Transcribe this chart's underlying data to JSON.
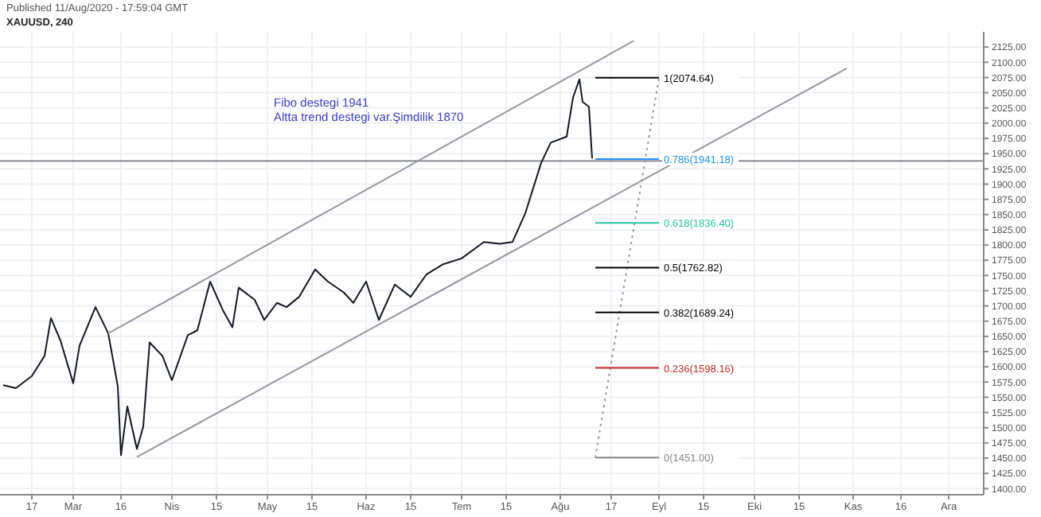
{
  "chart_data": {
    "type": "line",
    "title": "XAUUSD, 240",
    "subtitle": "Published 11/Aug/2020 - 17:59:04 GMT",
    "annotations": [
      "Fibo destegi  1941",
      "Altta trend destegi var.Şimdilik 1870"
    ],
    "series": [
      {
        "color": "#131722",
        "x": [
          "2020-02-08",
          "2020-02-12",
          "2020-02-17",
          "2020-02-21",
          "2020-02-23",
          "2020-02-26",
          "2020-03-01",
          "2020-03-03",
          "2020-03-08",
          "2020-03-12",
          "2020-03-15",
          "2020-03-16",
          "2020-03-18",
          "2020-03-21",
          "2020-03-23",
          "2020-03-25",
          "2020-03-29",
          "2020-04-01",
          "2020-04-06",
          "2020-04-09",
          "2020-04-13",
          "2020-04-17",
          "2020-04-20",
          "2020-04-22",
          "2020-04-27",
          "2020-04-30",
          "2020-05-04",
          "2020-05-07",
          "2020-05-11",
          "2020-05-16",
          "2020-05-20",
          "2020-05-25",
          "2020-05-28",
          "2020-06-01",
          "2020-06-05",
          "2020-06-10",
          "2020-06-15",
          "2020-06-20",
          "2020-06-25",
          "2020-07-01",
          "2020-07-08",
          "2020-07-13",
          "2020-07-17",
          "2020-07-21",
          "2020-07-26",
          "2020-07-29",
          "2020-08-03",
          "2020-08-05",
          "2020-08-07",
          "2020-08-08",
          "2020-08-10",
          "2020-08-11"
        ],
        "values": [
          1570,
          1565,
          1585,
          1618,
          1680,
          1643,
          1573,
          1635,
          1698,
          1655,
          1568,
          1455,
          1535,
          1465,
          1502,
          1640,
          1618,
          1578,
          1652,
          1660,
          1740,
          1693,
          1665,
          1730,
          1710,
          1677,
          1705,
          1698,
          1715,
          1760,
          1740,
          1722,
          1705,
          1740,
          1677,
          1735,
          1715,
          1752,
          1768,
          1778,
          1805,
          1802,
          1805,
          1852,
          1935,
          1968,
          1978,
          2042,
          2072,
          2035,
          2027,
          1942
        ]
      },
      {
        "color": "#9598a1",
        "x": [
          "2020-03-12",
          "2020-08-24"
        ],
        "values": [
          1655,
          2135
        ]
      },
      {
        "color": "#9598a1",
        "x": [
          "2020-03-21",
          "2020-10-30"
        ],
        "values": [
          1452,
          2090
        ]
      },
      {
        "color": "#9598a1",
        "line_style": "dotted",
        "x": [
          "2020-08-12",
          "2020-09-01"
        ],
        "values": [
          1451,
          2075
        ]
      },
      {
        "name": "1(2074.64)",
        "color": "#000000",
        "x": [
          "2020-08-12",
          "2020-09-01"
        ],
        "values": [
          2074.64,
          2074.64
        ]
      },
      {
        "name": "0.786(1941.18)",
        "color": "#2196f3",
        "x": [
          "2020-08-12",
          "2020-09-01"
        ],
        "values": [
          1941.18,
          1941.18
        ]
      },
      {
        "name": "0.618(1836.40)",
        "color": "#26c6a0",
        "x": [
          "2020-08-12",
          "2020-09-01"
        ],
        "values": [
          1836.4,
          1836.4
        ]
      },
      {
        "name": "0.5(1762.82)",
        "color": "#000000",
        "x": [
          "2020-08-12",
          "2020-09-01"
        ],
        "values": [
          1762.82,
          1762.82
        ]
      },
      {
        "name": "0.382(1689.24)",
        "color": "#000000",
        "x": [
          "2020-08-12",
          "2020-09-01"
        ],
        "values": [
          1689.24,
          1689.24
        ]
      },
      {
        "name": "0.236(1598.16)",
        "color": "#c62828",
        "x": [
          "2020-08-12",
          "2020-09-01"
        ],
        "values": [
          1598.16,
          1598.16
        ]
      },
      {
        "name": "0(1451.00)",
        "color": "#888888",
        "x": [
          "2020-08-12",
          "2020-09-01"
        ],
        "values": [
          1451,
          1451
        ]
      }
    ],
    "ref_lines": [
      {
        "axis": "y",
        "value": 1938,
        "color": "#787b86"
      }
    ],
    "xlim": [
      "2020-02-07",
      "2020-12-12"
    ],
    "xticks": [
      {
        "value": "2020-02-17",
        "label": "17"
      },
      {
        "value": "2020-03-01",
        "label": "Mar"
      },
      {
        "value": "2020-03-16",
        "label": "16"
      },
      {
        "value": "2020-04-01",
        "label": "Nis"
      },
      {
        "value": "2020-04-15",
        "label": "15"
      },
      {
        "value": "2020-05-01",
        "label": "May"
      },
      {
        "value": "2020-05-15",
        "label": "15"
      },
      {
        "value": "2020-06-01",
        "label": "Haz"
      },
      {
        "value": "2020-06-15",
        "label": "15"
      },
      {
        "value": "2020-07-01",
        "label": "Tem"
      },
      {
        "value": "2020-07-15",
        "label": "15"
      },
      {
        "value": "2020-08-01",
        "label": "Ağu"
      },
      {
        "value": "2020-08-17",
        "label": "17"
      },
      {
        "value": "2020-09-01",
        "label": "Eyl"
      },
      {
        "value": "2020-09-15",
        "label": "15"
      },
      {
        "value": "2020-10-01",
        "label": "Eki"
      },
      {
        "value": "2020-10-15",
        "label": "15"
      },
      {
        "value": "2020-11-01",
        "label": "Kas"
      },
      {
        "value": "2020-11-16",
        "label": "16"
      },
      {
        "value": "2020-12-01",
        "label": "Ara"
      }
    ],
    "ylim": [
      1390,
      2150
    ],
    "yticks": [
      {
        "value": 1400,
        "label": "1400.00"
      },
      {
        "value": 1425,
        "label": "1425.00"
      },
      {
        "value": 1450,
        "label": "1450.00"
      },
      {
        "value": 1475,
        "label": "1475.00"
      },
      {
        "value": 1500,
        "label": "1500.00"
      },
      {
        "value": 1525,
        "label": "1525.00"
      },
      {
        "value": 1550,
        "label": "1550.00"
      },
      {
        "value": 1575,
        "label": "1575.00"
      },
      {
        "value": 1600,
        "label": "1600.00"
      },
      {
        "value": 1625,
        "label": "1625.00"
      },
      {
        "value": 1650,
        "label": "1650.00"
      },
      {
        "value": 1675,
        "label": "1675.00"
      },
      {
        "value": 1700,
        "label": "1700.00"
      },
      {
        "value": 1725,
        "label": "1725.00"
      },
      {
        "value": 1750,
        "label": "1750.00"
      },
      {
        "value": 1775,
        "label": "1775.00"
      },
      {
        "value": 1800,
        "label": "1800.00"
      },
      {
        "value": 1825,
        "label": "1825.00"
      },
      {
        "value": 1850,
        "label": "1850.00"
      },
      {
        "value": 1875,
        "label": "1875.00"
      },
      {
        "value": 1900,
        "label": "1900.00"
      },
      {
        "value": 1925,
        "label": "1925.00"
      },
      {
        "value": 1950,
        "label": "1950.00"
      },
      {
        "value": 1975,
        "label": "1975.00"
      },
      {
        "value": 2000,
        "label": "2000.00"
      },
      {
        "value": 2025,
        "label": "2025.00"
      },
      {
        "value": 2050,
        "label": "2050.00"
      },
      {
        "value": 2075,
        "label": "2075.00"
      },
      {
        "value": 2100,
        "label": "2100.00"
      },
      {
        "value": 2125,
        "label": "2125.00"
      }
    ],
    "grid": true,
    "legend": false,
    "marker": "none",
    "line_style": "solid"
  }
}
